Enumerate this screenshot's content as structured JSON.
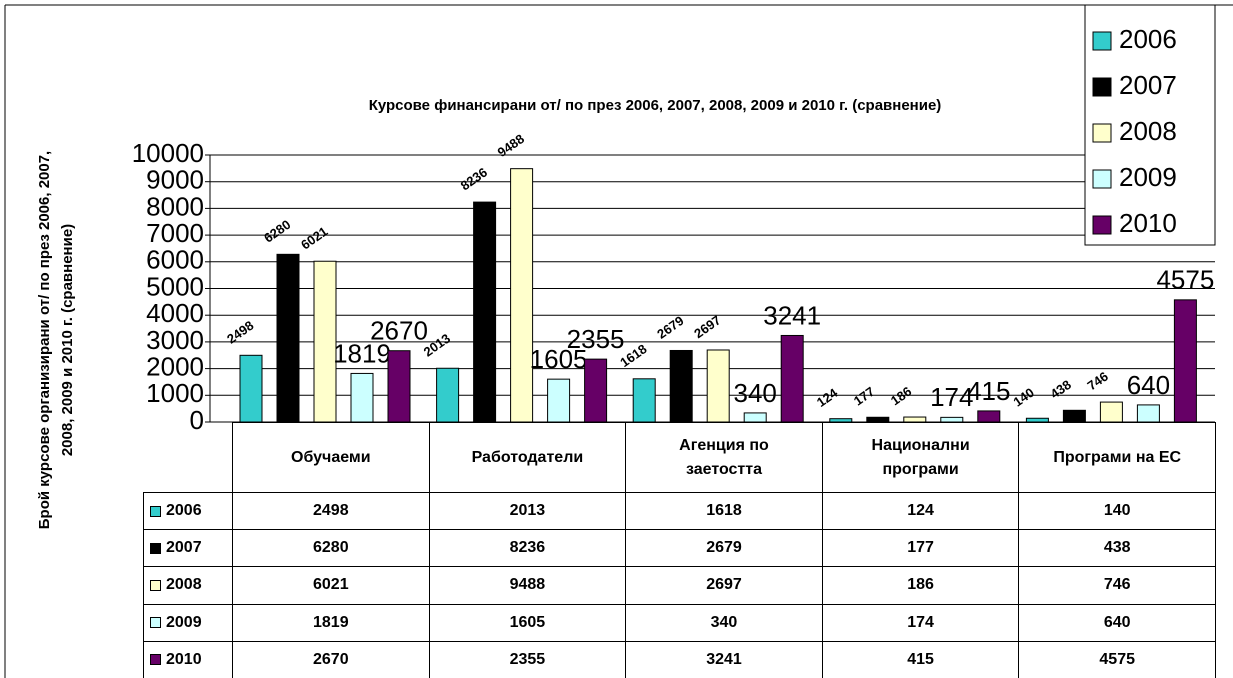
{
  "chart_data": {
    "type": "bar",
    "title": "Курсове финансирани от/ по през 2006, 2007, 2008, 2009 и 2010 г. (сравнение)",
    "y_label_lines": [
      "Брой курсове организирани от/ по през 2006, 2007,",
      "2008, 2009 и 2010 г. (сравнение)"
    ],
    "categories": [
      "Обучаеми",
      "Работодатели",
      "Агенция по заетостта",
      "Национални програми",
      "Програми на ЕС"
    ],
    "series": [
      {
        "name": "2006",
        "color": "#33cccc",
        "values": [
          2498,
          2013,
          1618,
          124,
          140
        ]
      },
      {
        "name": "2007",
        "color": "#000000",
        "values": [
          6280,
          8236,
          2679,
          177,
          438
        ]
      },
      {
        "name": "2008",
        "color": "#ffffcc",
        "values": [
          6021,
          9488,
          2697,
          186,
          746
        ]
      },
      {
        "name": "2009",
        "color": "#ccffff",
        "values": [
          1819,
          1605,
          340,
          174,
          640
        ]
      },
      {
        "name": "2010",
        "color": "#660066",
        "values": [
          2670,
          2355,
          3241,
          415,
          4575
        ]
      }
    ],
    "ylim": [
      0,
      10000
    ],
    "yticks": [
      0,
      1000,
      2000,
      3000,
      4000,
      5000,
      6000,
      7000,
      8000,
      9000,
      10000
    ],
    "grid": true,
    "legend": "top-right"
  }
}
